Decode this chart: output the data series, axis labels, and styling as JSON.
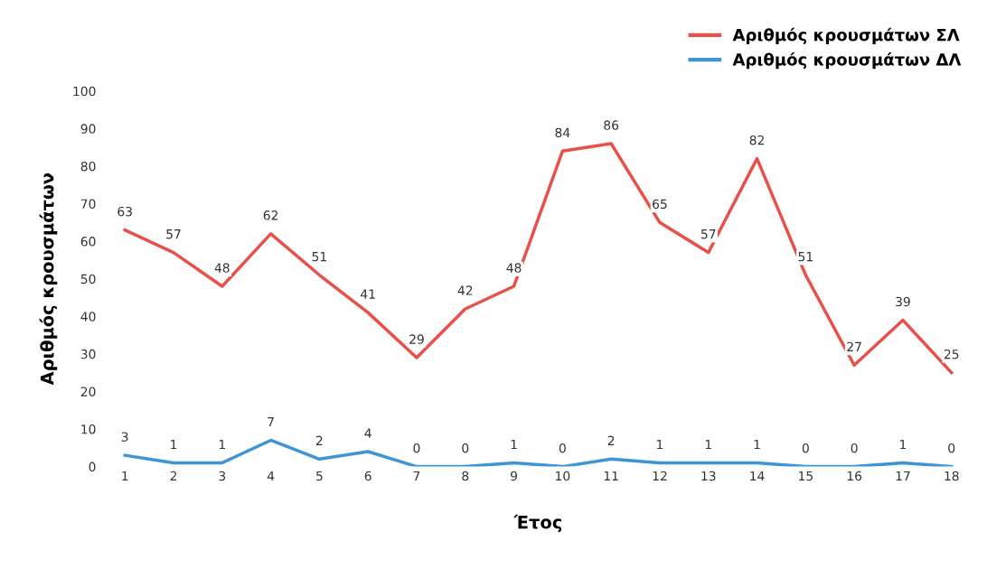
{
  "chart_data": {
    "type": "line",
    "xlabel": "Έτος",
    "ylabel": "Αριθμός κρουσμάτων",
    "categories": [
      "1",
      "2",
      "3",
      "4",
      "5",
      "6",
      "7",
      "8",
      "9",
      "10",
      "11",
      "12",
      "13",
      "14",
      "15",
      "16",
      "17",
      "18"
    ],
    "series": [
      {
        "name": "Αριθμός κρουσμάτων ΣΛ",
        "color": "#e8504a",
        "values": [
          63,
          57,
          48,
          62,
          51,
          41,
          29,
          42,
          48,
          84,
          86,
          65,
          57,
          82,
          51,
          27,
          39,
          25
        ]
      },
      {
        "name": "Αριθμός κρουσμάτων ΔΛ",
        "color": "#3d95d6",
        "values": [
          3,
          1,
          1,
          7,
          2,
          4,
          0,
          0,
          1,
          0,
          2,
          1,
          1,
          1,
          0,
          0,
          1,
          0
        ]
      }
    ],
    "ylim": [
      0,
      100
    ],
    "yticks": [
      0,
      10,
      20,
      30,
      40,
      50,
      60,
      70,
      80,
      90,
      100
    ],
    "data_labels": true,
    "legend": "top right",
    "grid": false,
    "marker": "none",
    "line_style": "solid"
  }
}
